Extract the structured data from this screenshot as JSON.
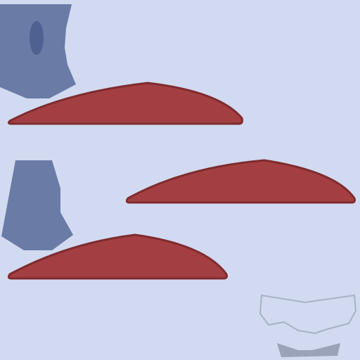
{
  "colors": {
    "background": "#d1daf0",
    "blue_panel": "#6a7ba6",
    "blue_slot": "#4f6190",
    "red_fill": "#a33f42",
    "red_stroke": "#7f2b2e",
    "outline_stroke": "#a8b2c7",
    "gray_fill": "#9aa3b8"
  },
  "icons": {
    "top_left_panel": "blue-panel-icon",
    "panel_slot": "slot-icon",
    "middle_left_panel": "blue-panel-icon",
    "red_shapes": "red-crescent-icon",
    "outline_shape": "outline-icon",
    "gray_shape": "gray-wedge-icon"
  }
}
